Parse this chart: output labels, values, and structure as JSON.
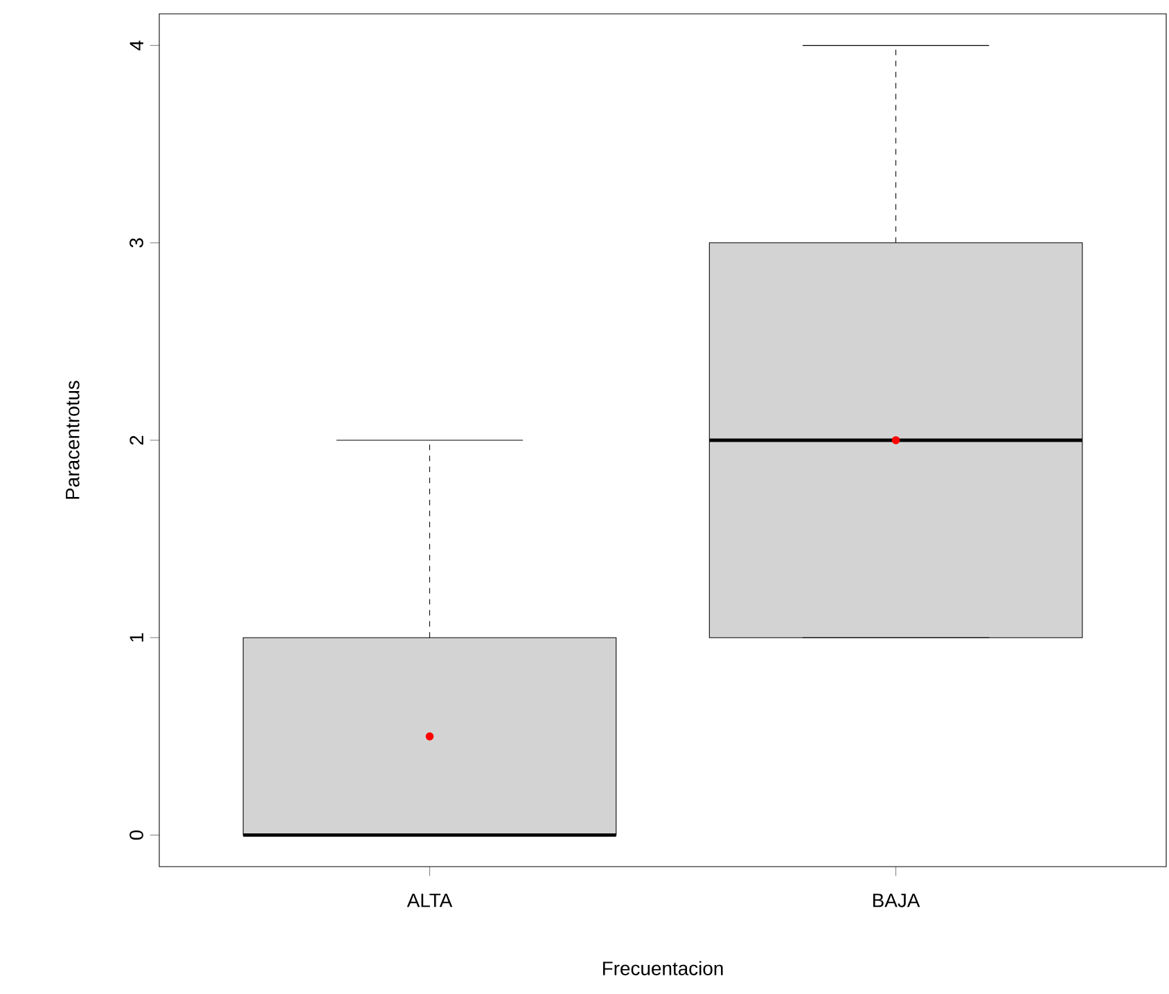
{
  "chart_data": {
    "type": "box",
    "xlabel": "Frecuentacion",
    "ylabel": "Paracentrotus",
    "categories": [
      "ALTA",
      "BAJA"
    ],
    "boxes": [
      {
        "low": 0,
        "q1": 0,
        "median": 0,
        "q3": 1,
        "high": 2,
        "mean": 0.5
      },
      {
        "low": 1,
        "q1": 1,
        "median": 2,
        "q3": 3,
        "high": 4,
        "mean": 2
      }
    ],
    "color": "#d3d3d3",
    "ylim": [
      -0.16,
      4.16
    ],
    "yticks": [
      0,
      1,
      2,
      3,
      4
    ],
    "grid": false
  }
}
